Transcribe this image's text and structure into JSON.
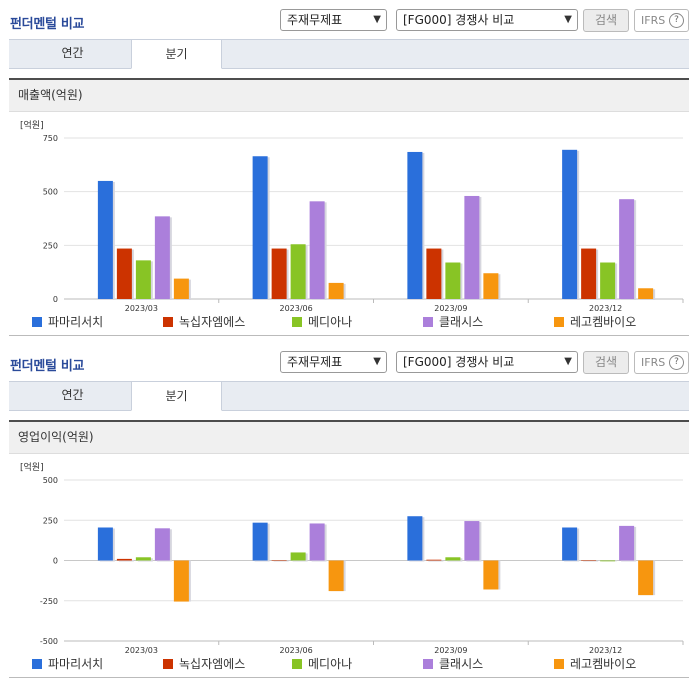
{
  "colors": {
    "series": [
      "#2a6fdb",
      "#cc3300",
      "#88c425",
      "#ab7fdb",
      "#f7960f"
    ],
    "title": "#2a4a9a"
  },
  "sections": [
    {
      "title": "펀더멘털 비교",
      "select1": "주재무제표",
      "select2": "[FG000] 경쟁사 비교",
      "search_label": "검색",
      "ifrs_label": "IFRS",
      "help_icon_glyph": "?",
      "tabs": [
        "연간",
        "분기"
      ],
      "active_tab": 1,
      "chart_title": "매출액(억원)",
      "unit": "[억원]"
    },
    {
      "title": "펀더멘털 비교",
      "select1": "주재무제표",
      "select2": "[FG000] 경쟁사 비교",
      "search_label": "검색",
      "ifrs_label": "IFRS",
      "help_icon_glyph": "?",
      "tabs": [
        "연간",
        "분기"
      ],
      "active_tab": 1,
      "chart_title": "영업이익(억원)",
      "unit": "[억원]"
    }
  ],
  "chart_data": [
    {
      "type": "bar",
      "title": "매출액(억원)",
      "ylabel": "[억원]",
      "categories": [
        "2023/03",
        "2023/06",
        "2023/09",
        "2023/12"
      ],
      "ylim": [
        0,
        750
      ],
      "yticks": [
        0,
        250,
        500,
        750
      ],
      "series": [
        {
          "name": "파마리서치",
          "values": [
            550,
            665,
            685,
            695
          ]
        },
        {
          "name": "녹십자엠에스",
          "values": [
            235,
            235,
            235,
            235
          ]
        },
        {
          "name": "메디아나",
          "values": [
            180,
            255,
            170,
            170
          ]
        },
        {
          "name": "클래시스",
          "values": [
            385,
            455,
            480,
            465
          ]
        },
        {
          "name": "레고켐바이오",
          "values": [
            95,
            75,
            120,
            50
          ]
        }
      ],
      "legend": "bottom",
      "grid": true
    },
    {
      "type": "bar",
      "title": "영업이익(억원)",
      "ylabel": "[억원]",
      "categories": [
        "2023/03",
        "2023/06",
        "2023/09",
        "2023/12"
      ],
      "ylim": [
        -500,
        500
      ],
      "yticks": [
        -500,
        -250,
        0,
        250,
        500
      ],
      "series": [
        {
          "name": "파마리서치",
          "values": [
            205,
            235,
            275,
            205
          ]
        },
        {
          "name": "녹십자엠에스",
          "values": [
            10,
            0,
            5,
            0
          ]
        },
        {
          "name": "메디아나",
          "values": [
            20,
            50,
            20,
            -5
          ]
        },
        {
          "name": "클래시스",
          "values": [
            200,
            230,
            245,
            215
          ]
        },
        {
          "name": "레고켐바이오",
          "values": [
            -255,
            -190,
            -180,
            -215
          ]
        }
      ],
      "legend": "bottom",
      "grid": true
    }
  ]
}
